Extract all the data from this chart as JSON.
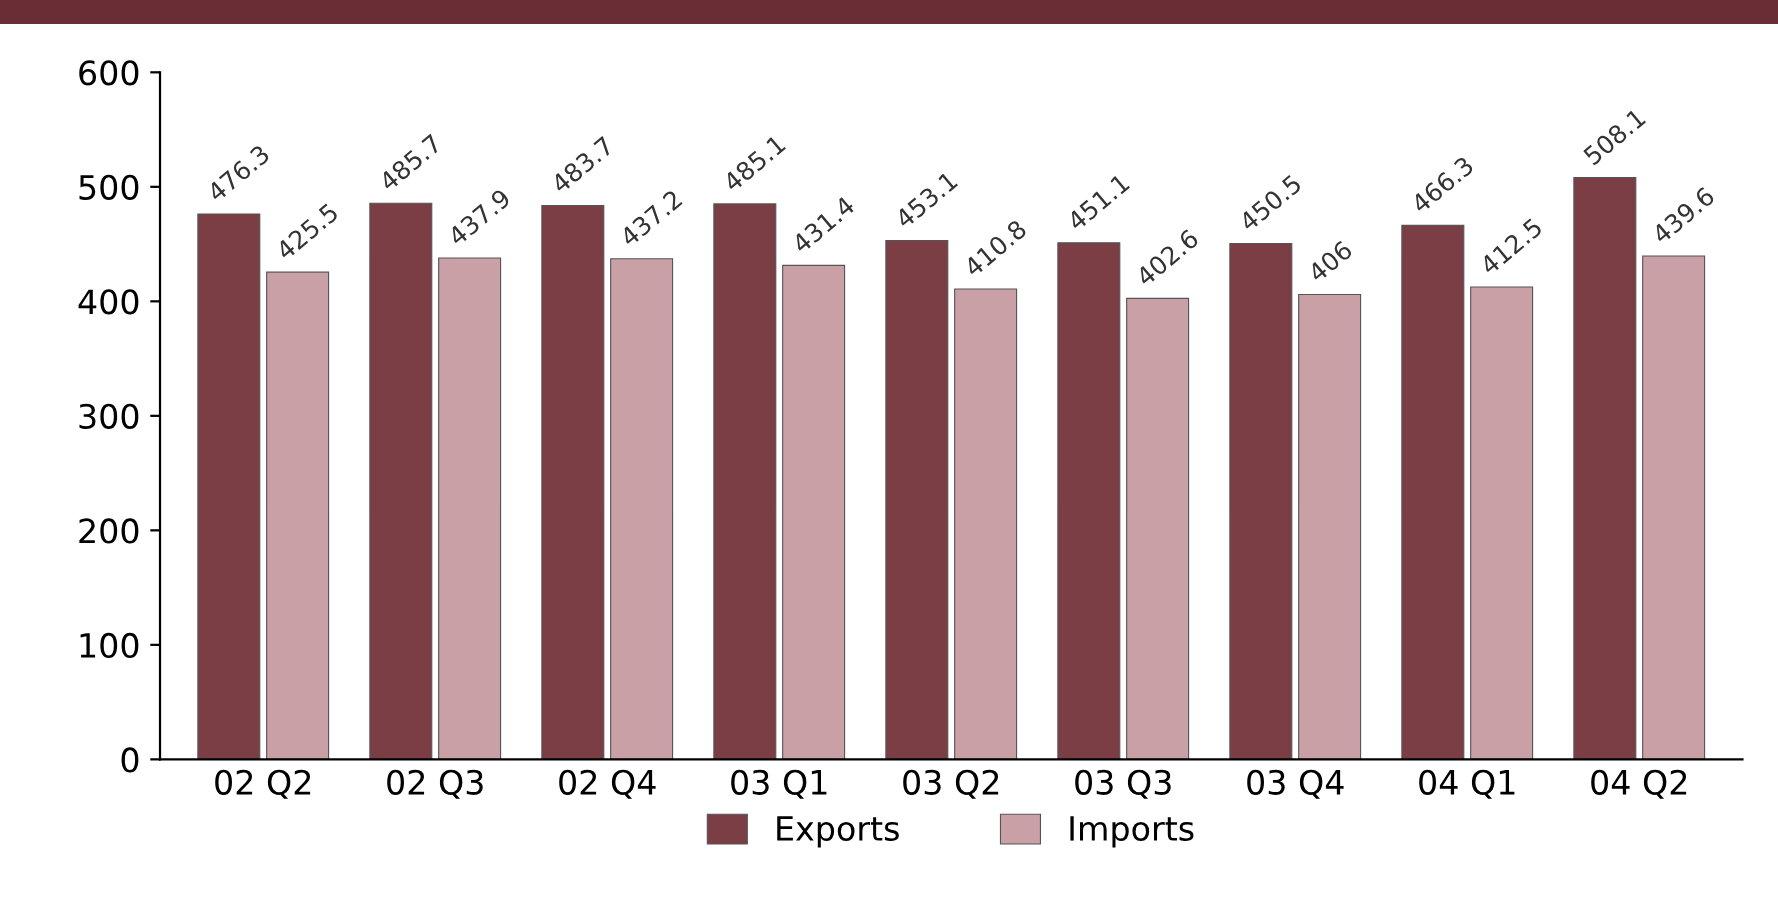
{
  "chart_data": {
    "type": "bar",
    "categories": [
      "02 Q2",
      "02 Q3",
      "02 Q4",
      "03 Q1",
      "03 Q2",
      "03 Q3",
      "03 Q4",
      "04 Q1",
      "04 Q2"
    ],
    "series": [
      {
        "name": "Exports",
        "color": "#7a3e44",
        "values": [
          476.3,
          485.7,
          483.7,
          485.1,
          453.1,
          451.1,
          450.5,
          466.3,
          508.1
        ]
      },
      {
        "name": "Imports",
        "color": "#c9a0a6",
        "values": [
          425.5,
          437.9,
          437.2,
          431.4,
          410.8,
          402.6,
          406,
          412.5,
          439.6
        ]
      }
    ],
    "ylim": [
      0,
      600
    ],
    "yticks": [
      0,
      100,
      200,
      300,
      400,
      500,
      600
    ],
    "data_labels": true,
    "legend": "bottom",
    "grid": false
  }
}
